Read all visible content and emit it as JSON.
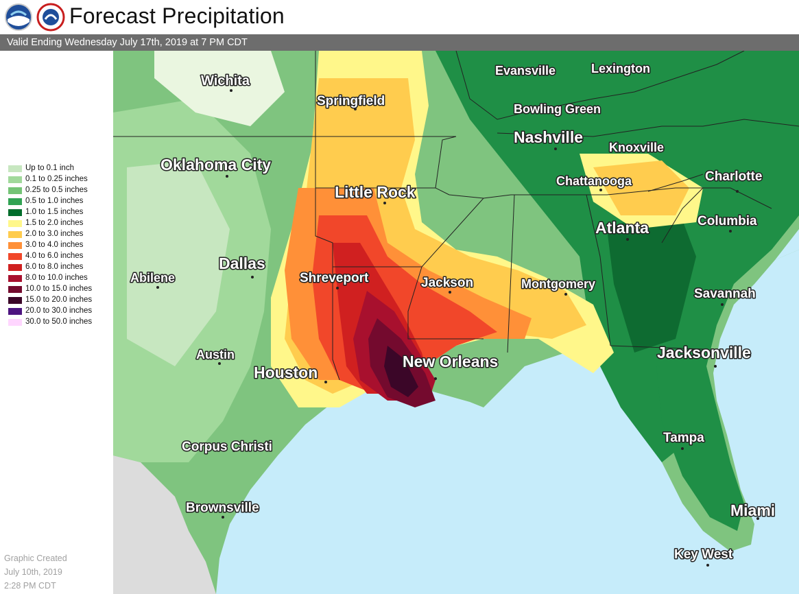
{
  "header": {
    "title": "Forecast Precipitation",
    "valid": "Valid Ending Wednesday July 17th, 2019 at 7 PM CDT",
    "logos": [
      {
        "name": "noaa-logo",
        "text": "NOAA"
      },
      {
        "name": "nws-logo",
        "text": "NATIONAL WEATHER SERVICE"
      }
    ]
  },
  "legend": [
    {
      "label": "Up to 0.1 inch",
      "color": "#c7e7c0"
    },
    {
      "label": "0.1 to 0.25 inches",
      "color": "#a1d99b"
    },
    {
      "label": "0.25 to 0.5 inches",
      "color": "#74c476"
    },
    {
      "label": "0.5 to 1.0 inches",
      "color": "#31a353"
    },
    {
      "label": "1.0 to 1.5 inches",
      "color": "#006d2c"
    },
    {
      "label": "1.5 to 2.0 inches",
      "color": "#fff78a"
    },
    {
      "label": "2.0 to 3.0 inches",
      "color": "#ffcc4e"
    },
    {
      "label": "3.0 to 4.0 inches",
      "color": "#ff9038"
    },
    {
      "label": "4.0 to 6.0 inches",
      "color": "#f1472a"
    },
    {
      "label": "6.0 to 8.0 inches",
      "color": "#d02020"
    },
    {
      "label": "8.0 to 10.0 inches",
      "color": "#a8102e"
    },
    {
      "label": "10.0 to 15.0 inches",
      "color": "#740a2e"
    },
    {
      "label": "15.0 to 20.0 inches",
      "color": "#3b0628"
    },
    {
      "label": "20.0 to 30.0 inches",
      "color": "#4d1480"
    },
    {
      "label": "30.0 to 50.0 inches",
      "color": "#ffd6ff"
    }
  ],
  "created": {
    "line1": "Graphic Created",
    "line2": "July 10th, 2019",
    "line3": "2:28 PM CDT"
  },
  "cities": [
    {
      "name": "Wichita",
      "size": "md"
    },
    {
      "name": "Springfield",
      "size": "md"
    },
    {
      "name": "Evansville",
      "size": "sm"
    },
    {
      "name": "Lexington",
      "size": "sm"
    },
    {
      "name": "Bowling Green",
      "size": "sm"
    },
    {
      "name": "Nashville",
      "size": "lg"
    },
    {
      "name": "Knoxville",
      "size": "sm"
    },
    {
      "name": "Oklahoma City",
      "size": "lg"
    },
    {
      "name": "Little Rock",
      "size": "lg"
    },
    {
      "name": "Chattanooga",
      "size": "sm"
    },
    {
      "name": "Charlotte",
      "size": "md"
    },
    {
      "name": "Columbia",
      "size": "md"
    },
    {
      "name": "Atlanta",
      "size": "lg"
    },
    {
      "name": "Dallas",
      "size": "lg"
    },
    {
      "name": "Abilene",
      "size": "sm"
    },
    {
      "name": "Shreveport",
      "size": "md"
    },
    {
      "name": "Jackson",
      "size": "md"
    },
    {
      "name": "Montgomery",
      "size": "md"
    },
    {
      "name": "Savannah",
      "size": "md"
    },
    {
      "name": "Austin",
      "size": "sm"
    },
    {
      "name": "Houston",
      "size": "lg"
    },
    {
      "name": "New Orleans",
      "size": "lg"
    },
    {
      "name": "Jacksonville",
      "size": "lg"
    },
    {
      "name": "Corpus Christi",
      "size": "md"
    },
    {
      "name": "Tampa",
      "size": "md"
    },
    {
      "name": "Brownsville",
      "size": "md"
    },
    {
      "name": "Miami",
      "size": "lg"
    },
    {
      "name": "Key West",
      "size": "md"
    }
  ]
}
